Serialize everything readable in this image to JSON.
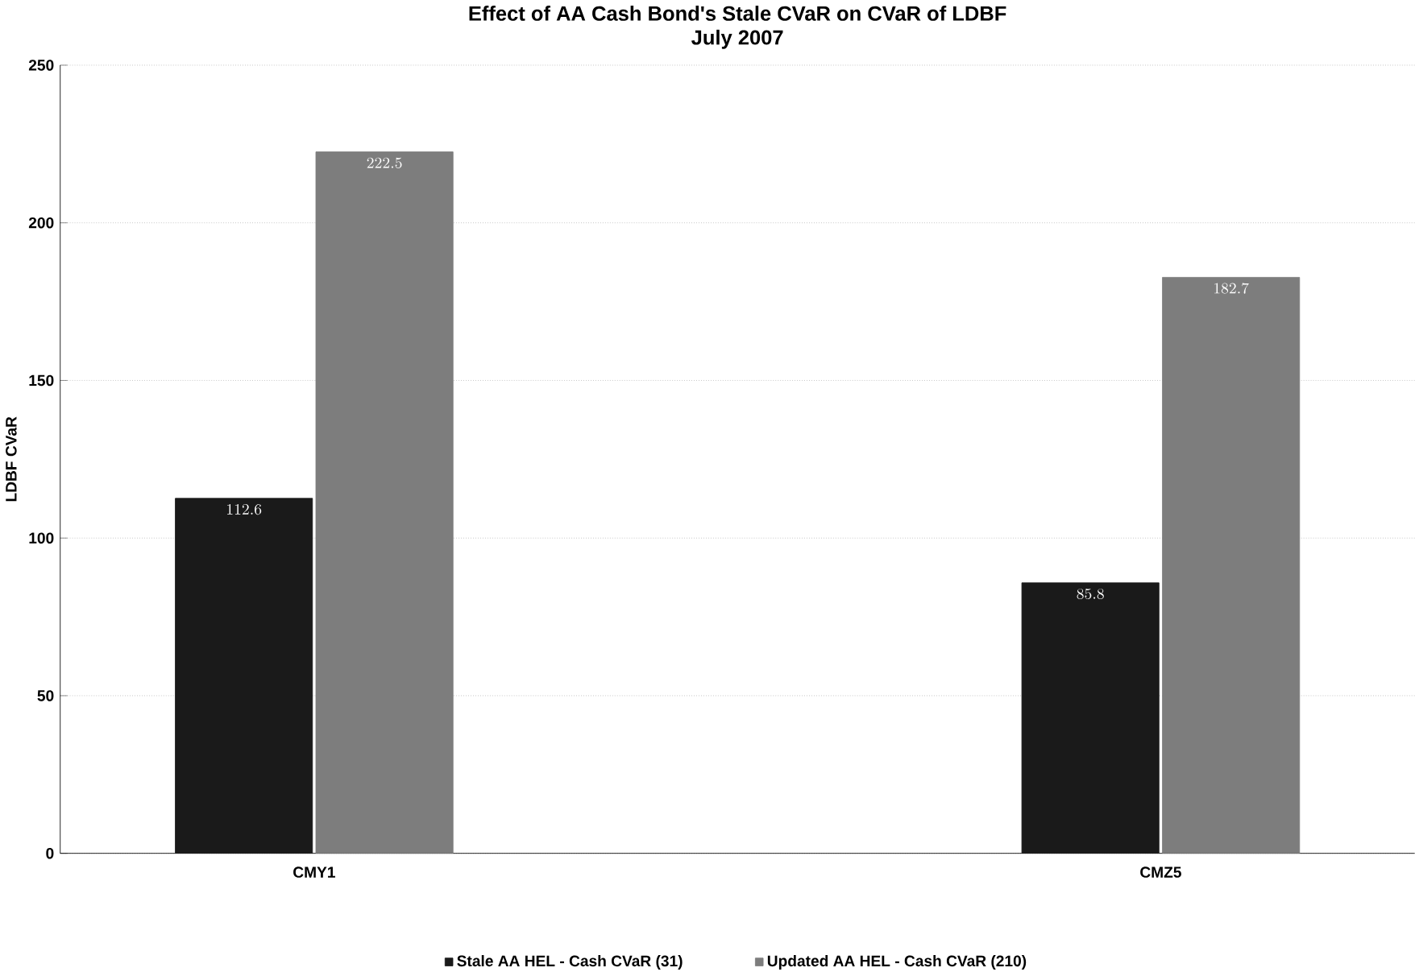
{
  "chart_data": {
    "type": "bar",
    "title": "Effect of AA Cash Bond's Stale CVaR on CVaR of LDBF",
    "subtitle": "July 2007",
    "ylabel": "LDBF CVaR",
    "categories": [
      "CMY1",
      "CMZ5"
    ],
    "series": [
      {
        "name": "Stale AA HEL - Cash CVaR (31)",
        "color": "#1a1a1a",
        "values": [
          112.6,
          85.8
        ]
      },
      {
        "name": "Updated AA HEL - Cash CVaR (210)",
        "color": "#7d7d7d",
        "values": [
          222.5,
          182.7
        ]
      }
    ],
    "ylim": [
      0,
      250
    ],
    "yticks": [
      0,
      50,
      100,
      150,
      200,
      250
    ],
    "grid": "y",
    "legend": "bottom",
    "data_labels": true
  }
}
